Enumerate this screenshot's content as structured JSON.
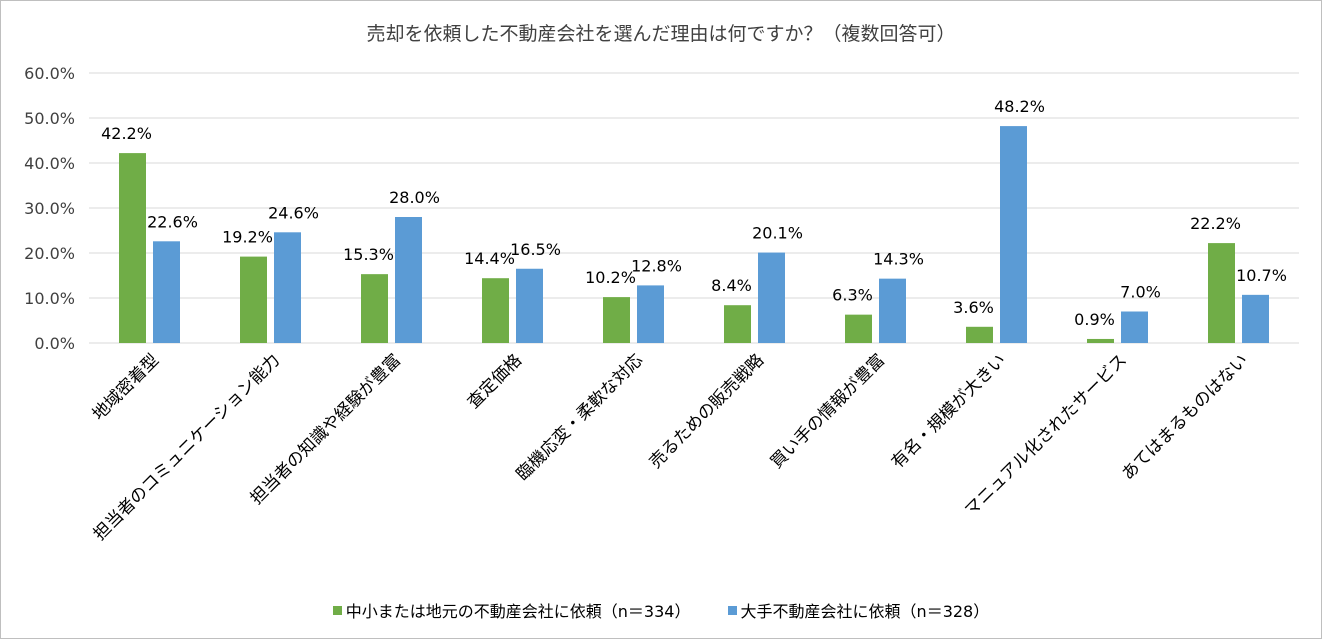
{
  "colors": {
    "series1": "#70ad47",
    "series2": "#5b9bd5",
    "grid": "#d9d9d9"
  },
  "chart_data": {
    "type": "bar",
    "title": "売却を依頼した不動産会社を選んだ理由は何ですか？（複数回答可）",
    "categories": [
      "地域密着型",
      "担当者のコミュニケーション能力",
      "担当者の知識や経験が豊富",
      "査定価格",
      "臨機応変・柔軟な対応",
      "売るための販売戦略",
      "買い手の情報が豊富",
      "有名・規模が大きい",
      "マニュアル化されたサービス",
      "あてはまるものはない"
    ],
    "series": [
      {
        "name": "中小または地元の不動産会社に依頼（n＝334）",
        "values": [
          42.2,
          19.2,
          15.3,
          14.4,
          10.2,
          8.4,
          6.3,
          3.6,
          0.9,
          22.2
        ],
        "labels": [
          "42.2%",
          "19.2%",
          "15.3%",
          "14.4%",
          "10.2%",
          "8.4%",
          "6.3%",
          "3.6%",
          "0.9%",
          "22.2%"
        ]
      },
      {
        "name": "大手不動産会社に依頼（n＝328）",
        "values": [
          22.6,
          24.6,
          28.0,
          16.5,
          12.8,
          20.1,
          14.3,
          48.2,
          7.0,
          10.7
        ],
        "labels": [
          "22.6%",
          "24.6%",
          "28.0%",
          "16.5%",
          "12.8%",
          "20.1%",
          "14.3%",
          "48.2%",
          "7.0%",
          "10.7%"
        ]
      }
    ],
    "yticks": [
      "0.0%",
      "10.0%",
      "20.0%",
      "30.0%",
      "40.0%",
      "50.0%",
      "60.0%"
    ],
    "ylim": [
      0,
      60
    ],
    "grid": true,
    "legend": "bottom"
  }
}
